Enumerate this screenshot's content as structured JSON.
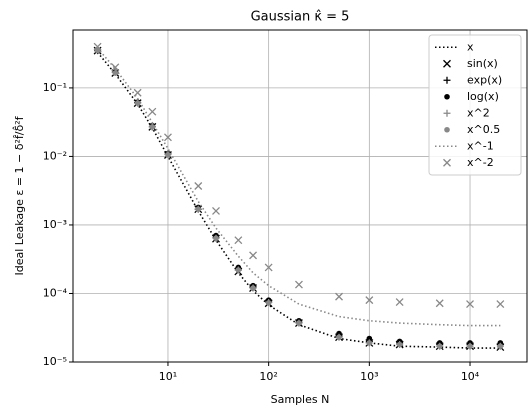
{
  "chart_data": {
    "type": "line",
    "title": "Gaussian κ̂ = 5",
    "xlabel": "Samples N",
    "ylabel": "Ideal Leakage ε = 1 − δ²f̂/δ̂²f",
    "xscale": "log",
    "yscale": "log",
    "grid": true,
    "legend": "upper right",
    "xlim": [
      1.14,
      36800
    ],
    "ylim": [
      1e-05,
      0.7
    ],
    "xticks": [
      {
        "value": 10,
        "label": "10¹"
      },
      {
        "value": 100,
        "label": "10²"
      },
      {
        "value": 1000,
        "label": "10³"
      },
      {
        "value": 10000,
        "label": "10⁴"
      }
    ],
    "yticks": [
      {
        "value": 1e-05,
        "label": "10⁻⁵"
      },
      {
        "value": 0.0001,
        "label": "10⁻⁴"
      },
      {
        "value": 0.001,
        "label": "10⁻³"
      },
      {
        "value": 0.01,
        "label": "10⁻²"
      },
      {
        "value": 0.1,
        "label": "10⁻¹"
      }
    ],
    "x": [
      2,
      3,
      5,
      7,
      10,
      20,
      30,
      50,
      70,
      100,
      200,
      500,
      1000,
      2000,
      5000,
      10000,
      20000
    ],
    "series": [
      {
        "name": "x",
        "color": "#000000",
        "style": "dotted",
        "values": [
          0.33,
          0.16,
          0.058,
          0.026,
          0.01,
          0.0016,
          0.0006,
          0.0002,
          0.00011,
          6.8e-05,
          3.5e-05,
          2.2e-05,
          1.9e-05,
          1.7e-05,
          1.65e-05,
          1.6e-05,
          1.6e-05
        ]
      },
      {
        "name": "sin(x)",
        "color": "#000000",
        "marker": "x",
        "values": [
          0.35,
          0.165,
          0.06,
          0.027,
          0.0105,
          0.0017,
          0.00063,
          0.00021,
          0.00012,
          7.2e-05,
          3.7e-05,
          2.3e-05,
          1.9e-05,
          1.8e-05,
          1.7e-05,
          1.7e-05,
          1.65e-05
        ]
      },
      {
        "name": "exp(x)",
        "color": "#000000",
        "marker": "+",
        "values": [
          0.35,
          0.17,
          0.061,
          0.027,
          0.0108,
          0.0017,
          0.00065,
          0.00022,
          0.000125,
          7.5e-05,
          3.8e-05,
          2.4e-05,
          2e-05,
          1.9e-05,
          1.8e-05,
          1.8e-05,
          1.8e-05
        ]
      },
      {
        "name": "log(x)",
        "color": "#000000",
        "marker": "o",
        "values": [
          0.36,
          0.17,
          0.062,
          0.028,
          0.011,
          0.0018,
          0.0007,
          0.00024,
          0.00013,
          8e-05,
          4e-05,
          2.6e-05,
          2.2e-05,
          2e-05,
          1.9e-05,
          1.9e-05,
          1.9e-05
        ]
      },
      {
        "name": "x^2",
        "color": "#888888",
        "marker": "+",
        "values": [
          0.36,
          0.17,
          0.06,
          0.027,
          0.0107,
          0.0017,
          0.00064,
          0.00022,
          0.00012,
          7.4e-05,
          3.7e-05,
          2.3e-05,
          1.9e-05,
          1.8e-05,
          1.7e-05,
          1.7e-05,
          1.7e-05
        ]
      },
      {
        "name": "x^0.5",
        "color": "#888888",
        "marker": "o",
        "values": [
          0.35,
          0.165,
          0.06,
          0.027,
          0.0106,
          0.0017,
          0.00064,
          0.00022,
          0.00012,
          7.3e-05,
          3.7e-05,
          2.3e-05,
          1.9e-05,
          1.8e-05,
          1.7e-05,
          1.7e-05,
          1.7e-05
        ]
      },
      {
        "name": "x^-1",
        "color": "#888888",
        "style": "dotted",
        "values": [
          0.38,
          0.19,
          0.07,
          0.031,
          0.013,
          0.0022,
          0.0009,
          0.00035,
          0.0002,
          0.00013,
          7e-05,
          4.6e-05,
          4e-05,
          3.7e-05,
          3.5e-05,
          3.4e-05,
          3.4e-05
        ]
      },
      {
        "name": "x^-2",
        "color": "#888888",
        "marker": "x",
        "values": [
          0.4,
          0.2,
          0.085,
          0.045,
          0.019,
          0.0037,
          0.0016,
          0.0006,
          0.00036,
          0.00024,
          0.000135,
          9e-05,
          8e-05,
          7.5e-05,
          7.2e-05,
          7e-05,
          7e-05
        ]
      }
    ]
  }
}
